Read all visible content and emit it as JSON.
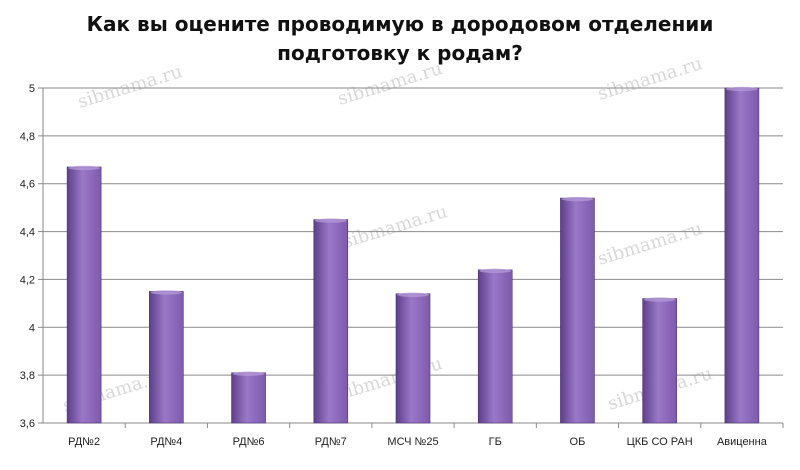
{
  "chart_data": {
    "type": "bar",
    "title_line1": "Как вы оцените проводимую в дородовом отделении",
    "title_line2": "подготовку к родам?",
    "categories": [
      "РД№2",
      "РД№4",
      "РД№6",
      "РД№7",
      "МСЧ №25",
      "ГБ",
      "ОБ",
      "ЦКБ СО РАН",
      "Авиценна"
    ],
    "values": [
      4.67,
      4.15,
      3.81,
      4.45,
      4.14,
      4.24,
      4.54,
      4.12,
      5.0
    ],
    "ylim": [
      3.6,
      5
    ],
    "yticks": [
      "3,6",
      "3,8",
      "4",
      "4,2",
      "4,4",
      "4,6",
      "4,8",
      "5"
    ],
    "grid": true,
    "legend": "none",
    "bar_color": "#7e5aad",
    "bar_color_light": "#9a78c8",
    "bar_color_dark": "#5e3f8a"
  },
  "watermark": "sibmama.ru"
}
